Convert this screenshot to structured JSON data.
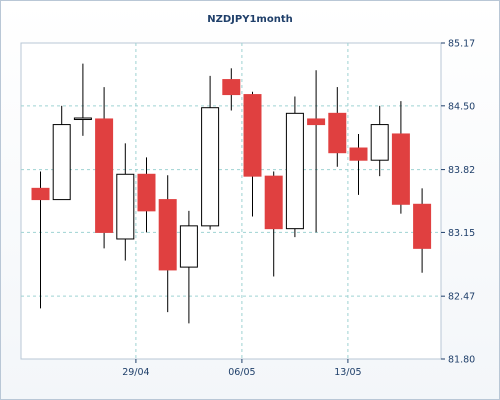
{
  "chart_data": {
    "type": "candlestick",
    "title": "NZDJPY1month",
    "xlabel": "",
    "ylabel": "",
    "ylim": [
      81.8,
      85.17
    ],
    "y_ticks": [
      "85.17",
      "84.50",
      "83.82",
      "83.15",
      "82.47",
      "81.80"
    ],
    "x_tick_labels": [
      {
        "label": "29/04",
        "index": 5
      },
      {
        "label": "06/05",
        "index": 10
      },
      {
        "label": "13/05",
        "index": 15
      }
    ],
    "grid": true,
    "colors": {
      "up_fill": "#ffffff",
      "down_fill": "#e04040",
      "outline": "#000000",
      "grid": "#9fd3d3"
    },
    "candles": [
      {
        "o": 83.62,
        "h": 83.8,
        "l": 82.34,
        "c": 83.5
      },
      {
        "o": 83.5,
        "h": 84.5,
        "l": 83.5,
        "c": 84.3
      },
      {
        "o": 84.36,
        "h": 84.95,
        "l": 84.18,
        "c": 84.37
      },
      {
        "o": 84.36,
        "h": 84.7,
        "l": 82.98,
        "c": 83.15
      },
      {
        "o": 83.08,
        "h": 84.1,
        "l": 82.85,
        "c": 83.77
      },
      {
        "o": 83.77,
        "h": 83.95,
        "l": 83.15,
        "c": 83.38
      },
      {
        "o": 83.5,
        "h": 83.76,
        "l": 82.3,
        "c": 82.75
      },
      {
        "o": 82.78,
        "h": 83.38,
        "l": 82.18,
        "c": 83.22
      },
      {
        "o": 83.22,
        "h": 84.82,
        "l": 83.18,
        "c": 84.48
      },
      {
        "o": 84.78,
        "h": 84.9,
        "l": 84.45,
        "c": 84.62
      },
      {
        "o": 84.62,
        "h": 84.65,
        "l": 83.32,
        "c": 83.75
      },
      {
        "o": 83.75,
        "h": 83.8,
        "l": 82.68,
        "c": 83.19
      },
      {
        "o": 83.19,
        "h": 84.6,
        "l": 83.1,
        "c": 84.42
      },
      {
        "o": 84.36,
        "h": 84.88,
        "l": 83.15,
        "c": 84.3
      },
      {
        "o": 84.42,
        "h": 84.7,
        "l": 83.85,
        "c": 84.0
      },
      {
        "o": 84.05,
        "h": 84.2,
        "l": 83.55,
        "c": 83.92
      },
      {
        "o": 83.92,
        "h": 84.5,
        "l": 83.75,
        "c": 84.3
      },
      {
        "o": 84.2,
        "h": 84.55,
        "l": 83.35,
        "c": 83.45
      },
      {
        "o": 83.45,
        "h": 83.62,
        "l": 82.72,
        "c": 82.98
      }
    ]
  }
}
